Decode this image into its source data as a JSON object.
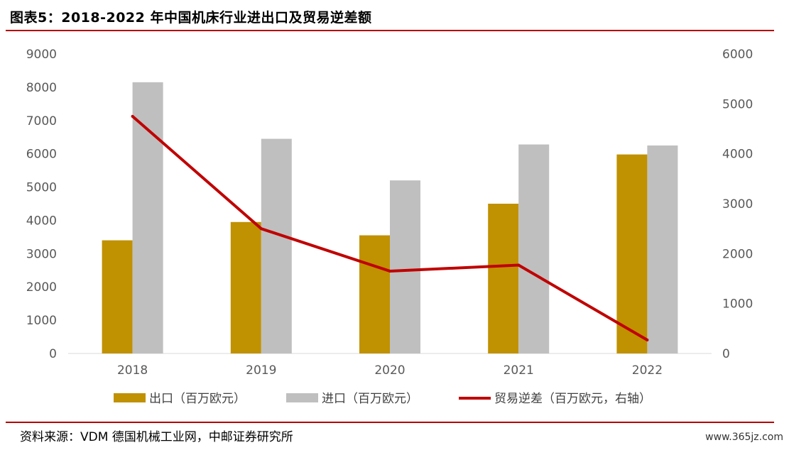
{
  "header": {
    "title": "图表5：2018-2022 年中国机床行业进出口及贸易逆差额"
  },
  "footer": {
    "source": "资料来源：VDM 德国机械工业网，中邮证券研究所",
    "watermark": "www.365jz.com"
  },
  "colors": {
    "export": "#C09100",
    "import": "#BFBFBF",
    "deficit": "#C00000",
    "rule": "#B30000"
  },
  "chart_data": {
    "type": "bar",
    "categories": [
      "2018",
      "2019",
      "2020",
      "2021",
      "2022"
    ],
    "series": [
      {
        "name": "出口（百万欧元）",
        "type": "bar",
        "axis": "left",
        "values": [
          3400,
          3950,
          3550,
          4500,
          5980
        ]
      },
      {
        "name": "进口（百万欧元）",
        "type": "bar",
        "axis": "left",
        "values": [
          8150,
          6450,
          5200,
          6280,
          6250
        ]
      },
      {
        "name": "贸易逆差（百万欧元，右轴）",
        "type": "line",
        "axis": "right",
        "values": [
          4750,
          2500,
          1650,
          1770,
          270
        ]
      }
    ],
    "y_left": {
      "min": 0,
      "max": 9000,
      "ticks": [
        "0",
        "1000",
        "2000",
        "3000",
        "4000",
        "5000",
        "6000",
        "7000",
        "8000",
        "9000"
      ]
    },
    "y_right": {
      "min": 0,
      "max": 6000,
      "ticks": [
        "0",
        "1000",
        "2000",
        "3000",
        "4000",
        "5000",
        "6000"
      ]
    },
    "grid": false,
    "legend_position": "bottom"
  }
}
